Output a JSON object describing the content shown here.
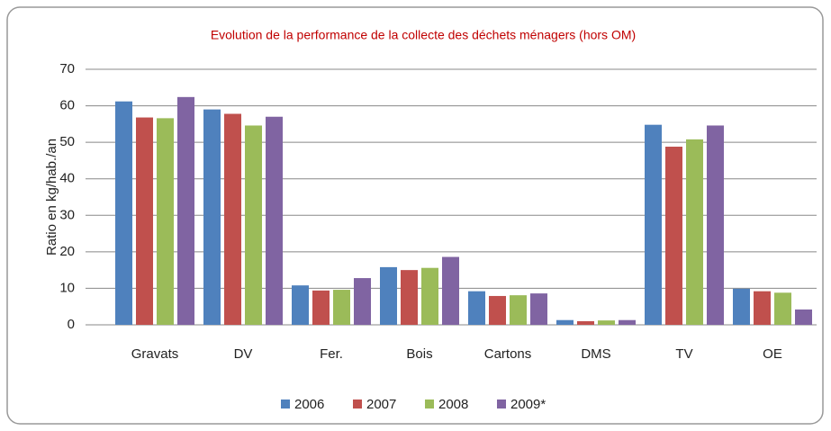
{
  "chart_data": {
    "type": "bar",
    "title": "Evolution de la performance de la collecte des déchets ménagers (hors OM)",
    "y_label": "Ratio en kg/hab./an",
    "categories": [
      "Gravats",
      "DV",
      "Fer.",
      "Bois",
      "Cartons",
      "DMS",
      "TV",
      "OE"
    ],
    "series": [
      {
        "name": "2006",
        "color": "#4f81bd",
        "values": [
          61.2,
          59,
          10.8,
          15.8,
          9.2,
          1.3,
          54.8,
          9.9
        ]
      },
      {
        "name": "2007",
        "color": "#c0504d",
        "values": [
          56.8,
          57.8,
          9.4,
          15,
          7.9,
          1.0,
          48.8,
          9.2
        ]
      },
      {
        "name": "2008",
        "color": "#9bbb59",
        "values": [
          56.6,
          54.6,
          9.6,
          15.6,
          8.1,
          1.2,
          50.8,
          8.8
        ]
      },
      {
        "name": "2009*",
        "color": "#8064a2",
        "values": [
          62.4,
          57,
          12.8,
          18.6,
          8.6,
          1.3,
          54.6,
          4.2
        ]
      }
    ],
    "ylim": [
      0,
      70
    ],
    "yticks": [
      0,
      10,
      20,
      30,
      40,
      50,
      60,
      70
    ],
    "grid": true,
    "legend": "bottom"
  }
}
